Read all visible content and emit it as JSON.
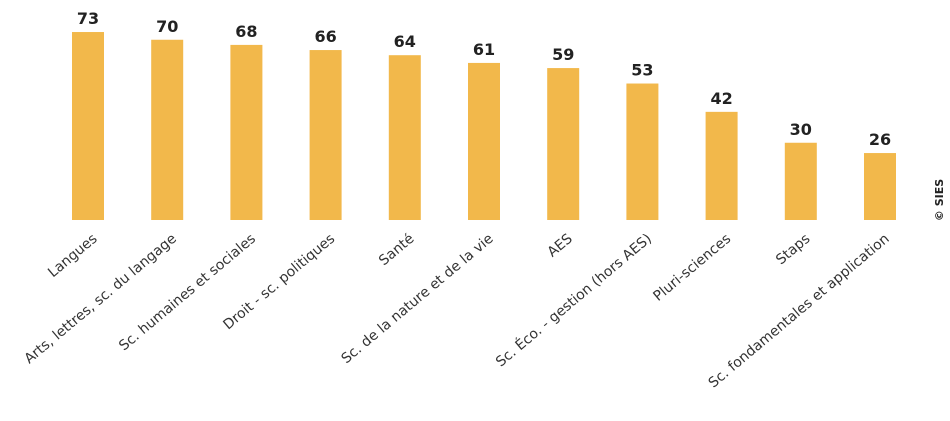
{
  "chart_data": {
    "type": "bar",
    "categories": [
      "Langues",
      "Arts, lettres, sc. du langage",
      "Sc. humaines et sociales",
      "Droit - sc. politiques",
      "Santé",
      "Sc. de la nature et de la vie",
      "AES",
      "Sc. Éco. - gestion (hors AES)",
      "Pluri-sciences",
      "Staps",
      "Sc. fondamentales et application"
    ],
    "values": [
      73,
      70,
      68,
      66,
      64,
      61,
      59,
      53,
      42,
      30,
      26
    ],
    "color": "#f2b84b",
    "credit": "© SIES"
  }
}
